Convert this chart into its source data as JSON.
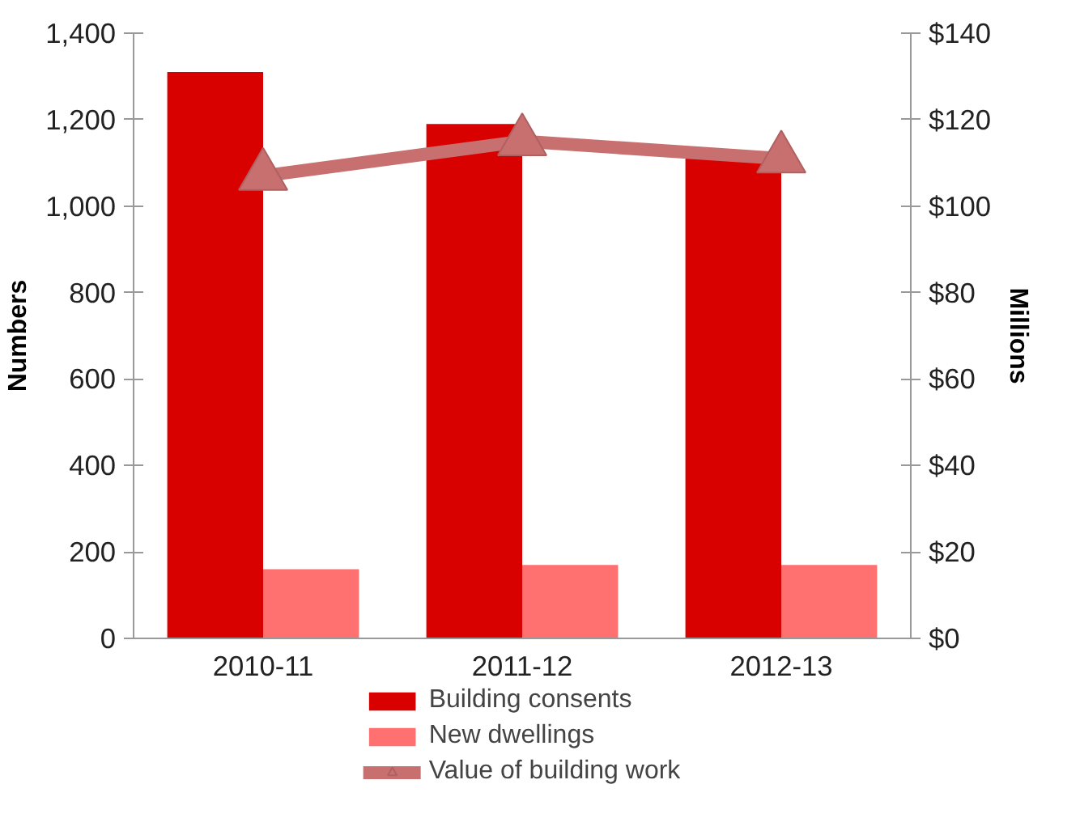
{
  "chart_data": {
    "type": "bar",
    "categories": [
      "2010-11",
      "2011-12",
      "2012-13"
    ],
    "ylabel": "Numbers",
    "y2label": "Millions",
    "ylim": [
      0,
      1400
    ],
    "yticks": [
      0,
      {
        "value": 200,
        "label": "200"
      },
      {
        "value": 400,
        "label": "400"
      },
      {
        "value": 600,
        "label": "600"
      },
      {
        "value": 800,
        "label": "800"
      },
      {
        "value": 1000,
        "label": "1,000"
      },
      {
        "value": 1200,
        "label": "1,200"
      },
      {
        "value": 1400,
        "label": "1,400"
      }
    ],
    "y2lim": [
      0,
      140
    ],
    "y2ticks": [
      {
        "value": 0,
        "label": "$0"
      },
      {
        "value": 20,
        "label": "$20"
      },
      {
        "value": 40,
        "label": "$40"
      },
      {
        "value": 60,
        "label": "$60"
      },
      {
        "value": 80,
        "label": "$80"
      },
      {
        "value": 100,
        "label": "$100"
      },
      {
        "value": 120,
        "label": "$120"
      },
      {
        "value": 140,
        "label": "$140"
      }
    ],
    "grid": false,
    "legend": "bottom",
    "series": [
      {
        "name": "Building consents",
        "color": "#d90000",
        "values": [
          1310,
          1190,
          1120
        ]
      },
      {
        "name": "New dwellings",
        "color": "#ff7070",
        "values": [
          160,
          170,
          170
        ]
      },
      {
        "name": "Value of building work",
        "type": "line",
        "axis": "y2",
        "color": "#c87070",
        "marker": "triangle",
        "values": [
          107,
          115,
          111
        ]
      }
    ]
  }
}
